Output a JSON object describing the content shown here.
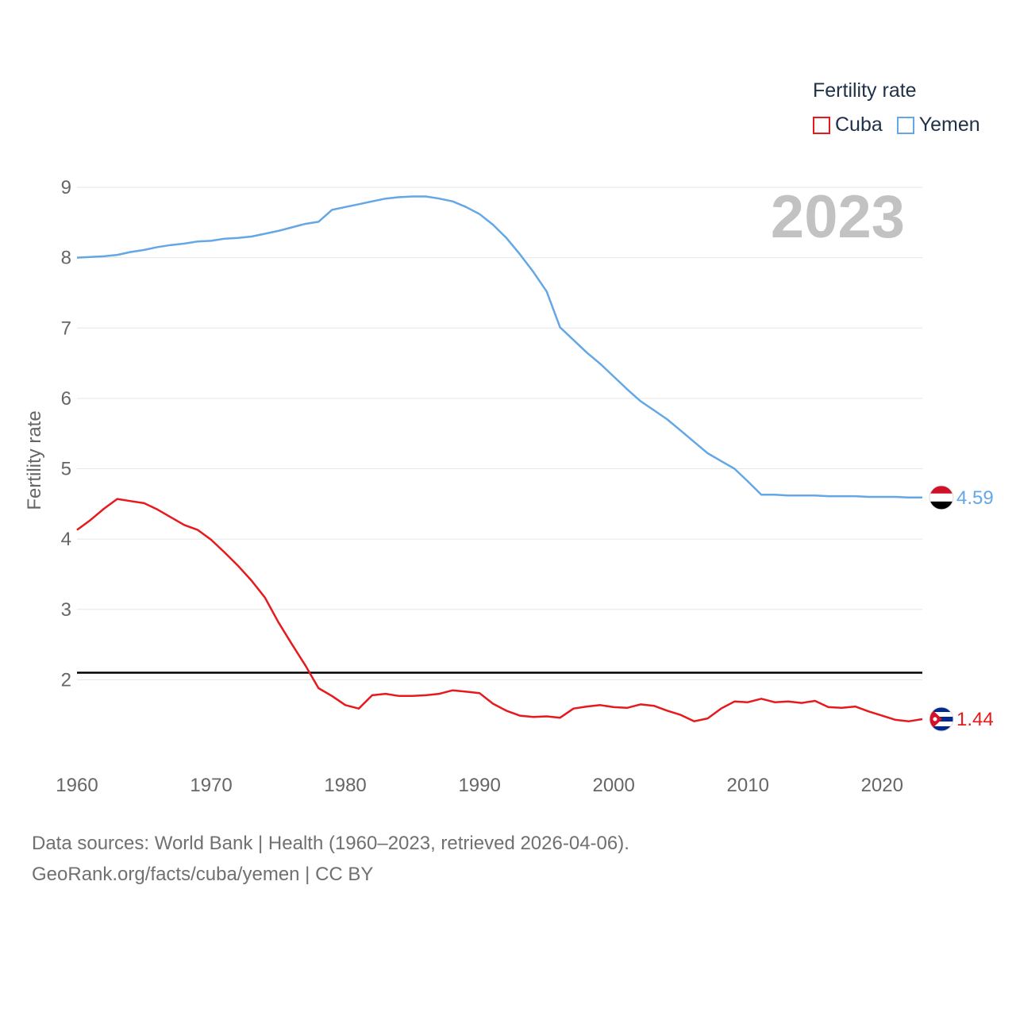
{
  "legend": {
    "title": "Fertility rate",
    "items": [
      {
        "label": "Cuba",
        "color": "#e8191c"
      },
      {
        "label": "Yemen",
        "color": "#64a7e6"
      }
    ]
  },
  "source": {
    "line1": "Data sources: World Bank | Health (1960–2023, retrieved 2026-04-06).",
    "line2": "GeoRank.org/facts/cuba/yemen | CC BY"
  },
  "chart_data": {
    "type": "line",
    "title": "Fertility rate",
    "ylabel": "Fertility rate",
    "xlabel": "",
    "year_label": "2023",
    "xlim": [
      1960,
      2023
    ],
    "ylim": [
      1,
      9.3
    ],
    "x_ticks": [
      1960,
      1970,
      1980,
      1990,
      2000,
      2010,
      2020
    ],
    "y_ticks": [
      2,
      3,
      4,
      5,
      6,
      7,
      8,
      9
    ],
    "reference_line": {
      "y": 2.1,
      "color": "#000000"
    },
    "x": [
      1960,
      1961,
      1962,
      1963,
      1964,
      1965,
      1966,
      1967,
      1968,
      1969,
      1970,
      1971,
      1972,
      1973,
      1974,
      1975,
      1976,
      1977,
      1978,
      1979,
      1980,
      1981,
      1982,
      1983,
      1984,
      1985,
      1986,
      1987,
      1988,
      1989,
      1990,
      1991,
      1992,
      1993,
      1994,
      1995,
      1996,
      1997,
      1998,
      1999,
      2000,
      2001,
      2002,
      2003,
      2004,
      2005,
      2006,
      2007,
      2008,
      2009,
      2010,
      2011,
      2012,
      2013,
      2014,
      2015,
      2016,
      2017,
      2018,
      2019,
      2020,
      2021,
      2022,
      2023
    ],
    "series": [
      {
        "name": "Cuba",
        "color": "#e8191c",
        "end_label": "1.44",
        "values": [
          4.13,
          4.27,
          4.43,
          4.57,
          4.54,
          4.51,
          4.42,
          4.31,
          4.2,
          4.13,
          3.99,
          3.81,
          3.62,
          3.41,
          3.17,
          2.82,
          2.51,
          2.21,
          1.88,
          1.77,
          1.64,
          1.59,
          1.78,
          1.8,
          1.77,
          1.77,
          1.78,
          1.8,
          1.85,
          1.83,
          1.81,
          1.66,
          1.56,
          1.49,
          1.47,
          1.48,
          1.46,
          1.59,
          1.62,
          1.64,
          1.61,
          1.6,
          1.65,
          1.63,
          1.56,
          1.5,
          1.41,
          1.45,
          1.59,
          1.69,
          1.68,
          1.73,
          1.68,
          1.69,
          1.67,
          1.7,
          1.61,
          1.6,
          1.62,
          1.55,
          1.49,
          1.43,
          1.41,
          1.44
        ]
      },
      {
        "name": "Yemen",
        "color": "#64a7e6",
        "end_label": "4.59",
        "values": [
          8.0,
          8.01,
          8.02,
          8.04,
          8.08,
          8.11,
          8.15,
          8.18,
          8.2,
          8.23,
          8.24,
          8.27,
          8.28,
          8.3,
          8.34,
          8.38,
          8.43,
          8.48,
          8.51,
          8.68,
          8.72,
          8.76,
          8.8,
          8.84,
          8.86,
          8.87,
          8.87,
          8.84,
          8.8,
          8.72,
          8.62,
          8.47,
          8.28,
          8.05,
          7.8,
          7.52,
          7.01,
          6.83,
          6.65,
          6.49,
          6.31,
          6.13,
          5.96,
          5.83,
          5.7,
          5.54,
          5.38,
          5.22,
          5.11,
          5.0,
          4.82,
          4.63,
          4.63,
          4.62,
          4.62,
          4.62,
          4.61,
          4.61,
          4.61,
          4.6,
          4.6,
          4.6,
          4.59,
          4.59
        ]
      }
    ]
  }
}
